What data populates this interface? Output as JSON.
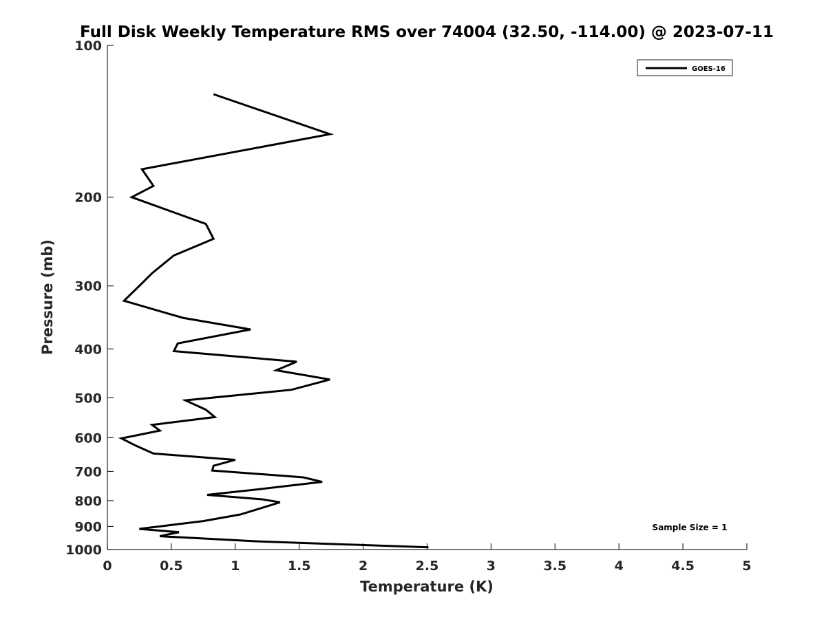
{
  "chart_data": {
    "type": "line",
    "title": "Full Disk Weekly Temperature RMS over 74004 (32.50, -114.00) @ 2023-07-11",
    "xlabel": "Temperature (K)",
    "ylabel": "Pressure (mb)",
    "xlim": [
      0,
      5
    ],
    "ylim": [
      100,
      1000
    ],
    "y_scale": "log",
    "y_reversed": true,
    "grid": false,
    "legend_position": "top-right",
    "x_ticks": [
      "0",
      "0.5",
      "1",
      "1.5",
      "2",
      "2.5",
      "3",
      "3.5",
      "4",
      "4.5",
      "5"
    ],
    "y_ticks": [
      "100",
      "200",
      "300",
      "400",
      "500",
      "600",
      "700",
      "800",
      "900",
      "1000"
    ],
    "annotation": "Sample Size = 1",
    "series": [
      {
        "name": "GOES-16",
        "color": "#000000",
        "points": [
          [
            0.83,
            125
          ],
          [
            1.74,
            150
          ],
          [
            0.27,
            176
          ],
          [
            0.36,
            190
          ],
          [
            0.19,
            200
          ],
          [
            0.77,
            226
          ],
          [
            0.83,
            242
          ],
          [
            0.52,
            261
          ],
          [
            0.35,
            283
          ],
          [
            0.25,
            300
          ],
          [
            0.13,
            321
          ],
          [
            0.59,
            347
          ],
          [
            1.12,
            366
          ],
          [
            0.55,
            390
          ],
          [
            0.52,
            404
          ],
          [
            1.48,
            424
          ],
          [
            1.32,
            441
          ],
          [
            1.74,
            460
          ],
          [
            1.44,
            482
          ],
          [
            0.61,
            506
          ],
          [
            0.77,
            528
          ],
          [
            0.84,
            546
          ],
          [
            0.35,
            566
          ],
          [
            0.41,
            581
          ],
          [
            0.11,
            602
          ],
          [
            0.22,
            622
          ],
          [
            0.36,
            645
          ],
          [
            1.0,
            664
          ],
          [
            0.83,
            682
          ],
          [
            0.82,
            697
          ],
          [
            1.53,
            719
          ],
          [
            1.68,
            734
          ],
          [
            1.19,
            759
          ],
          [
            0.78,
            779
          ],
          [
            1.21,
            795
          ],
          [
            1.35,
            806
          ],
          [
            1.2,
            828
          ],
          [
            1.04,
            852
          ],
          [
            0.75,
            878
          ],
          [
            0.25,
            910
          ],
          [
            0.56,
            924
          ],
          [
            0.41,
            941
          ],
          [
            1.16,
            963
          ],
          [
            2.51,
            990
          ]
        ]
      }
    ]
  }
}
